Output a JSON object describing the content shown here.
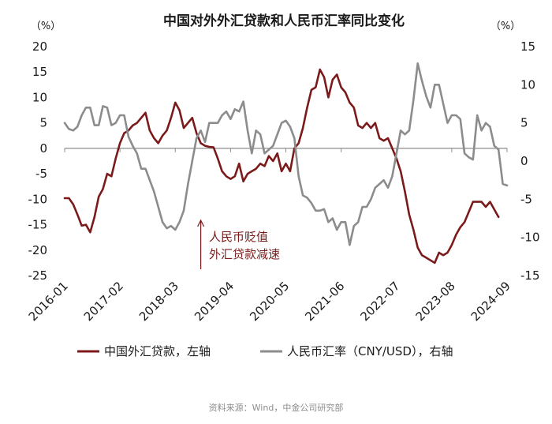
{
  "chart_data": {
    "type": "line",
    "title": "中国对外外汇贷款和人民币汇率同比变化",
    "left_unit": "（%）",
    "right_unit": "（%）",
    "x_ticks": [
      "2016-01",
      "2017-02",
      "2018-03",
      "2019-04",
      "2020-05",
      "2021-06",
      "2022-07",
      "2023-08",
      "2024-09"
    ],
    "x_range": [
      "2016-01",
      "2024-09"
    ],
    "ylim_left": [
      -25,
      20
    ],
    "yticks_left": [
      20,
      15,
      10,
      5,
      0,
      -5,
      -10,
      -15,
      -20,
      -25
    ],
    "ylim_right": [
      -15,
      15
    ],
    "yticks_right": [
      15,
      10,
      5,
      0,
      -5,
      -10,
      -15
    ],
    "annotation": {
      "lines": [
        "人民币贬值",
        "外汇贷款减速"
      ],
      "arrow_at": "2018-09"
    },
    "legend_placement": "bottom",
    "series": [
      {
        "name": "中国外汇贷款，左轴",
        "axis": "left",
        "color": "#7b1a1a",
        "points": [
          [
            "2016-01",
            -9.8
          ],
          [
            "2016-02",
            -9.8
          ],
          [
            "2016-03",
            -11
          ],
          [
            "2016-04",
            -13
          ],
          [
            "2016-05",
            -15.2
          ],
          [
            "2016-06",
            -15
          ],
          [
            "2016-07",
            -16.5
          ],
          [
            "2016-08",
            -13.5
          ],
          [
            "2016-09",
            -9.5
          ],
          [
            "2016-10",
            -8
          ],
          [
            "2016-11",
            -5
          ],
          [
            "2016-12",
            -5.5
          ],
          [
            "2017-01",
            -2
          ],
          [
            "2017-02",
            1
          ],
          [
            "2017-03",
            3
          ],
          [
            "2017-04",
            3.5
          ],
          [
            "2017-05",
            4.5
          ],
          [
            "2017-06",
            5
          ],
          [
            "2017-07",
            6
          ],
          [
            "2017-08",
            7
          ],
          [
            "2017-09",
            3.5
          ],
          [
            "2017-10",
            2
          ],
          [
            "2017-11",
            1
          ],
          [
            "2017-12",
            2.5
          ],
          [
            "2018-01",
            3.5
          ],
          [
            "2018-02",
            6
          ],
          [
            "2018-03",
            9
          ],
          [
            "2018-04",
            7.5
          ],
          [
            "2018-05",
            4
          ],
          [
            "2018-06",
            5
          ],
          [
            "2018-07",
            6
          ],
          [
            "2018-08",
            3
          ],
          [
            "2018-09",
            1
          ],
          [
            "2018-10",
            0.5
          ],
          [
            "2018-11",
            0.3
          ],
          [
            "2018-12",
            0.2
          ],
          [
            "2019-01",
            -2
          ],
          [
            "2019-02",
            -4.5
          ],
          [
            "2019-03",
            -5.5
          ],
          [
            "2019-04",
            -6
          ],
          [
            "2019-05",
            -5.5
          ],
          [
            "2019-06",
            -3
          ],
          [
            "2019-07",
            -6.5
          ],
          [
            "2019-08",
            -5
          ],
          [
            "2019-09",
            -4.5
          ],
          [
            "2019-10",
            -4
          ],
          [
            "2019-11",
            -3
          ],
          [
            "2019-12",
            -3.5
          ],
          [
            "2020-01",
            -1.5
          ],
          [
            "2020-02",
            -2.5
          ],
          [
            "2020-03",
            -1
          ],
          [
            "2020-04",
            -4.5
          ],
          [
            "2020-05",
            -3
          ],
          [
            "2020-06",
            -4.5
          ],
          [
            "2020-07",
            0
          ],
          [
            "2020-08",
            1
          ],
          [
            "2020-09",
            4
          ],
          [
            "2020-10",
            8
          ],
          [
            "2020-11",
            11.5
          ],
          [
            "2020-12",
            12
          ],
          [
            "2021-01",
            15.5
          ],
          [
            "2021-02",
            14
          ],
          [
            "2021-03",
            10
          ],
          [
            "2021-04",
            13.5
          ],
          [
            "2021-05",
            14.5
          ],
          [
            "2021-06",
            12
          ],
          [
            "2021-07",
            11
          ],
          [
            "2021-08",
            9
          ],
          [
            "2021-09",
            8
          ],
          [
            "2021-10",
            4.5
          ],
          [
            "2021-11",
            4
          ],
          [
            "2021-12",
            5
          ],
          [
            "2022-01",
            4
          ],
          [
            "2022-02",
            5
          ],
          [
            "2022-03",
            2
          ],
          [
            "2022-04",
            1.5
          ],
          [
            "2022-05",
            2
          ],
          [
            "2022-06",
            0
          ],
          [
            "2022-07",
            -2
          ],
          [
            "2022-08",
            -4.5
          ],
          [
            "2022-09",
            -8.5
          ],
          [
            "2022-10",
            -13
          ],
          [
            "2022-11",
            -16
          ],
          [
            "2022-12",
            -19.5
          ],
          [
            "2023-01",
            -21
          ],
          [
            "2023-02",
            -21.5
          ],
          [
            "2023-03",
            -22
          ],
          [
            "2023-04",
            -22.5
          ],
          [
            "2023-05",
            -20.5
          ],
          [
            "2023-06",
            -21
          ],
          [
            "2023-07",
            -20.5
          ],
          [
            "2023-08",
            -19
          ],
          [
            "2023-09",
            -17
          ],
          [
            "2023-10",
            -15.5
          ],
          [
            "2023-11",
            -14.5
          ],
          [
            "2023-12",
            -12.5
          ],
          [
            "2024-01",
            -10.5
          ],
          [
            "2024-02",
            -10.5
          ],
          [
            "2024-03",
            -10.5
          ],
          [
            "2024-04",
            -11.5
          ],
          [
            "2024-05",
            -10.5
          ],
          [
            "2024-06",
            -12
          ],
          [
            "2024-07",
            -13.5
          ]
        ]
      },
      {
        "name": "人民币汇率（CNY/USD），右轴",
        "axis": "right",
        "color": "#8c8c8c",
        "points": [
          [
            "2016-01",
            5
          ],
          [
            "2016-02",
            4.2
          ],
          [
            "2016-03",
            4
          ],
          [
            "2016-04",
            4.5
          ],
          [
            "2016-05",
            6
          ],
          [
            "2016-06",
            7
          ],
          [
            "2016-07",
            7
          ],
          [
            "2016-08",
            4.7
          ],
          [
            "2016-09",
            4.7
          ],
          [
            "2016-10",
            7.2
          ],
          [
            "2016-11",
            7
          ],
          [
            "2016-12",
            4.7
          ],
          [
            "2017-01",
            5
          ],
          [
            "2017-02",
            6
          ],
          [
            "2017-03",
            6
          ],
          [
            "2017-04",
            3.2
          ],
          [
            "2017-05",
            2
          ],
          [
            "2017-06",
            1
          ],
          [
            "2017-07",
            -1
          ],
          [
            "2017-08",
            -1
          ],
          [
            "2017-09",
            -2.5
          ],
          [
            "2017-10",
            -4
          ],
          [
            "2017-11",
            -6
          ],
          [
            "2017-12",
            -8
          ],
          [
            "2018-01",
            -8.8
          ],
          [
            "2018-02",
            -8.5
          ],
          [
            "2018-03",
            -9
          ],
          [
            "2018-04",
            -8
          ],
          [
            "2018-05",
            -6.5
          ],
          [
            "2018-06",
            -3
          ],
          [
            "2018-07",
            0
          ],
          [
            "2018-08",
            3
          ],
          [
            "2018-09",
            4
          ],
          [
            "2018-10",
            2.5
          ],
          [
            "2018-11",
            5
          ],
          [
            "2018-12",
            5
          ],
          [
            "2019-01",
            5
          ],
          [
            "2019-02",
            6
          ],
          [
            "2019-03",
            6.5
          ],
          [
            "2019-04",
            5.5
          ],
          [
            "2019-05",
            6.8
          ],
          [
            "2019-06",
            6.5
          ],
          [
            "2019-07",
            7.8
          ],
          [
            "2019-08",
            4
          ],
          [
            "2019-09",
            1
          ],
          [
            "2019-10",
            4
          ],
          [
            "2019-11",
            3.5
          ],
          [
            "2019-12",
            1
          ],
          [
            "2020-01",
            1.5
          ],
          [
            "2020-02",
            2
          ],
          [
            "2020-03",
            3.5
          ],
          [
            "2020-04",
            5
          ],
          [
            "2020-05",
            5.3
          ],
          [
            "2020-06",
            4.5
          ],
          [
            "2020-07",
            3
          ],
          [
            "2020-08",
            -2
          ],
          [
            "2020-09",
            -4.5
          ],
          [
            "2020-10",
            -4.8
          ],
          [
            "2020-11",
            -5.5
          ],
          [
            "2020-12",
            -6.5
          ],
          [
            "2021-01",
            -6.5
          ],
          [
            "2021-02",
            -6.3
          ],
          [
            "2021-03",
            -8
          ],
          [
            "2021-04",
            -7.5
          ],
          [
            "2021-05",
            -9
          ],
          [
            "2021-06",
            -8
          ],
          [
            "2021-07",
            -8
          ],
          [
            "2021-08",
            -11
          ],
          [
            "2021-09",
            -8.5
          ],
          [
            "2021-10",
            -8
          ],
          [
            "2021-11",
            -6
          ],
          [
            "2021-12",
            -6
          ],
          [
            "2022-01",
            -5
          ],
          [
            "2022-02",
            -3.5
          ],
          [
            "2022-03",
            -3
          ],
          [
            "2022-04",
            -2.5
          ],
          [
            "2022-05",
            -3.5
          ],
          [
            "2022-06",
            -2
          ],
          [
            "2022-07",
            1
          ],
          [
            "2022-08",
            4
          ],
          [
            "2022-09",
            3.5
          ],
          [
            "2022-10",
            4
          ],
          [
            "2022-11",
            8
          ],
          [
            "2022-12",
            12.8
          ],
          [
            "2023-01",
            10.5
          ],
          [
            "2023-02",
            8.5
          ],
          [
            "2023-03",
            7
          ],
          [
            "2023-04",
            10
          ],
          [
            "2023-05",
            10
          ],
          [
            "2023-06",
            7.5
          ],
          [
            "2023-07",
            5
          ],
          [
            "2023-08",
            6
          ],
          [
            "2023-09",
            6
          ],
          [
            "2023-10",
            5.5
          ],
          [
            "2023-11",
            1
          ],
          [
            "2023-12",
            0.5
          ],
          [
            "2024-01",
            0.2
          ],
          [
            "2024-02",
            6
          ],
          [
            "2024-03",
            4
          ],
          [
            "2024-04",
            5
          ],
          [
            "2024-05",
            4.5
          ],
          [
            "2024-06",
            2
          ],
          [
            "2024-07",
            1.5
          ],
          [
            "2024-08",
            -3
          ],
          [
            "2024-09",
            -3.2
          ]
        ]
      }
    ]
  },
  "footer": {
    "source": "资料来源：Wind，中金公司研究部"
  }
}
